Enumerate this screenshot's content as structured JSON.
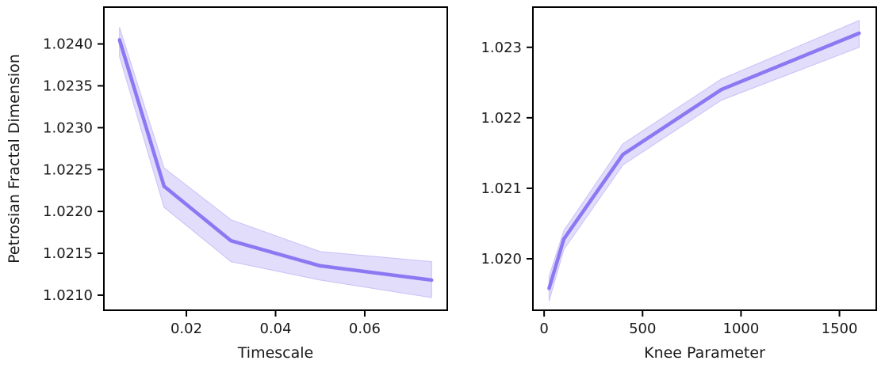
{
  "colors": {
    "line": "#8b78f2",
    "band": "#c9c1f8",
    "axis": "#000000"
  },
  "chart_data": [
    {
      "type": "line",
      "ylabel": "Petrosian Fractal Dimension",
      "xlabel": "Timescale",
      "xlim": [
        0.0015,
        0.0785
      ],
      "ylim": [
        1.02082,
        1.02444
      ],
      "xticks": [
        0.02,
        0.04,
        0.06
      ],
      "xtick_labels": [
        "0.02",
        "0.04",
        "0.06"
      ],
      "yticks": [
        1.021,
        1.0215,
        1.022,
        1.0225,
        1.023,
        1.0235,
        1.024
      ],
      "ytick_labels": [
        "1.0210",
        "1.0215",
        "1.0220",
        "1.0225",
        "1.0230",
        "1.0235",
        "1.0240"
      ],
      "grid": false,
      "x": [
        0.005,
        0.015,
        0.03,
        0.05,
        0.075
      ],
      "y": [
        1.02405,
        1.0223,
        1.02165,
        1.02135,
        1.02118
      ],
      "ci_upper": [
        1.0242,
        1.02252,
        1.0219,
        1.02152,
        1.0214
      ],
      "ci_lower": [
        1.02385,
        1.02205,
        1.0214,
        1.02118,
        1.02097
      ]
    },
    {
      "type": "line",
      "ylabel": "",
      "xlabel": "Knee Parameter",
      "xlim": [
        -57,
        1687
      ],
      "ylim": [
        1.01927,
        1.02357
      ],
      "xticks": [
        0,
        500,
        1000,
        1500
      ],
      "xtick_labels": [
        "0",
        "500",
        "1000",
        "1500"
      ],
      "yticks": [
        1.02,
        1.021,
        1.022,
        1.023
      ],
      "ytick_labels": [
        "1.020",
        "1.021",
        "1.022",
        "1.023"
      ],
      "grid": false,
      "x": [
        25,
        100,
        400,
        900,
        1600
      ],
      "y": [
        1.01958,
        1.02028,
        1.02148,
        1.0224,
        1.0232
      ],
      "ci_upper": [
        1.01975,
        1.0204,
        1.02163,
        1.02255,
        1.02338
      ],
      "ci_lower": [
        1.0194,
        1.02013,
        1.02133,
        1.02225,
        1.023
      ]
    }
  ]
}
